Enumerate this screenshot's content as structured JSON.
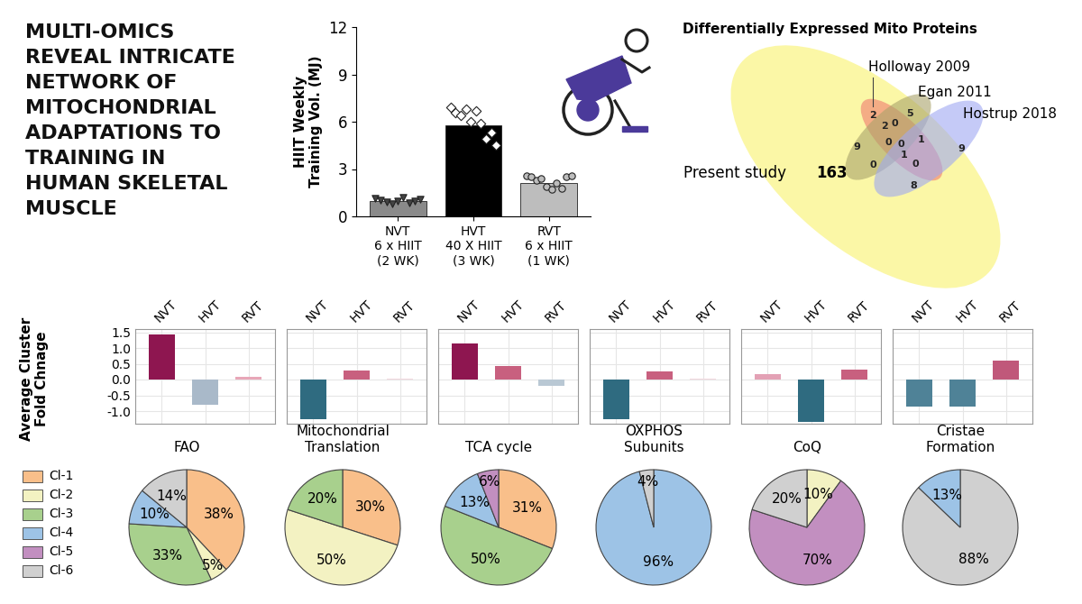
{
  "title": "MULTI-OMICS\nREVEAL INTRICATE\nNETWORK OF\nMITOCHONDRIAL\nADAPTATIONS TO\nTRAINING IN\nHUMAN SKELETAL\nMUSCLE",
  "venn": {
    "title": "Differentially Expressed Mito Proteins",
    "sets": [
      {
        "name": "Present study",
        "color": "#fbf7a6"
      },
      {
        "name": "Holloway 2009",
        "color": "#f07a70"
      },
      {
        "name": "Egan 2011",
        "color": "#a9a26a"
      },
      {
        "name": "Hostrup 2018",
        "color": "#9fa8f2"
      }
    ],
    "present_count": 163,
    "region_counts": [
      2,
      2,
      0,
      5,
      9,
      0,
      0,
      1,
      9,
      1,
      0,
      0,
      8
    ]
  },
  "cluster_legend": [
    {
      "name": "Cl-1",
      "color": "#f9bf8a"
    },
    {
      "name": "Cl-2",
      "color": "#f3f2c2"
    },
    {
      "name": "Cl-3",
      "color": "#a8d08d"
    },
    {
      "name": "Cl-4",
      "color": "#9dc3e6"
    },
    {
      "name": "Cl-5",
      "color": "#c28fc0"
    },
    {
      "name": "Cl-6",
      "color": "#d0d0d0"
    }
  ],
  "chart_data": [
    {
      "type": "bar",
      "ylabel": "HIIT Weekly\nTraining Vol. (MJ)",
      "categories": [
        "NVT\n6 x HIIT\n(2 WK)",
        "HVT\n40 X HIIT\n(3 WK)",
        "RVT\n6 x HIIT\n(1 WK)"
      ],
      "values": [
        0.95,
        5.75,
        2.1
      ],
      "colors": [
        "#8a8a8a",
        "#000000",
        "#bdbdbd"
      ],
      "points": [
        [
          1.15,
          1.05,
          0.9,
          0.8,
          1.0,
          1.2,
          0.85,
          0.95,
          1.1
        ],
        [
          6.9,
          6.6,
          6.4,
          6.8,
          6.0,
          6.7,
          5.9,
          4.9,
          5.3,
          4.5
        ],
        [
          2.6,
          2.5,
          2.3,
          2.4,
          1.9,
          1.7,
          2.1,
          1.8,
          2.5,
          2.6
        ]
      ],
      "ylim": [
        0,
        12
      ],
      "yticks": [
        0,
        3,
        6,
        9,
        12
      ]
    },
    {
      "type": "bar",
      "ylabel": "Average Cluster\nFold Chnage",
      "categories": [
        "NVT",
        "HVT",
        "RVT"
      ],
      "values": [
        1.43,
        -0.81,
        0.08
      ],
      "colors": [
        "#8e1650",
        "#a9b9c9",
        "#e8a7b8"
      ],
      "ylim": [
        -1.4,
        1.6
      ],
      "yticks": [
        {
          "value": -1,
          "label": "-1.0"
        },
        -0.5,
        {
          "value": 0,
          "label": "0.0"
        },
        0.5,
        {
          "value": 1,
          "label": "1.0"
        },
        1.5
      ],
      "grid": true
    },
    {
      "type": "bar",
      "categories": [
        "NVT",
        "HVT",
        "RVT"
      ],
      "values": [
        -1.26,
        0.28,
        0.02
      ],
      "colors": [
        "#2f6b80",
        "#c8607f",
        "#f2d7de"
      ],
      "ylim": [
        -1.4,
        1.6
      ],
      "yticks": [
        {
          "value": -1,
          "label": "-1.0"
        },
        -0.5,
        {
          "value": 0,
          "label": "0.0"
        },
        0.5,
        {
          "value": 1,
          "label": "1.0"
        },
        1.5
      ],
      "grid": true,
      "tick_labels": "x"
    },
    {
      "type": "bar",
      "categories": [
        "NVT",
        "HVT",
        "RVT"
      ],
      "values": [
        1.15,
        0.42,
        -0.2
      ],
      "colors": [
        "#8e1650",
        "#c8607f",
        "#b9c8d4"
      ],
      "ylim": [
        -1.4,
        1.6
      ],
      "yticks": [
        {
          "value": -1,
          "label": "-1.0"
        },
        -0.5,
        {
          "value": 0,
          "label": "0.0"
        },
        0.5,
        {
          "value": 1,
          "label": "1.0"
        },
        1.5
      ],
      "grid": true,
      "tick_labels": "x"
    },
    {
      "type": "bar",
      "categories": [
        "NVT",
        "HVT",
        "RVT"
      ],
      "values": [
        -1.26,
        0.25,
        0.02
      ],
      "colors": [
        "#2f6b80",
        "#c8607f",
        "#f2d7de"
      ],
      "ylim": [
        -1.4,
        1.6
      ],
      "yticks": [
        {
          "value": -1,
          "label": "-1.0"
        },
        -0.5,
        {
          "value": 0,
          "label": "0.0"
        },
        0.5,
        {
          "value": 1,
          "label": "1.0"
        },
        1.5
      ],
      "grid": true,
      "tick_labels": "x"
    },
    {
      "type": "bar",
      "categories": [
        "NVT",
        "HVT",
        "RVT"
      ],
      "values": [
        0.17,
        -1.35,
        0.31
      ],
      "colors": [
        "#e3a1b5",
        "#2f6b80",
        "#c8607f"
      ],
      "ylim": [
        -1.4,
        1.6
      ],
      "yticks": [
        {
          "value": -1,
          "label": "-1.0"
        },
        -0.5,
        {
          "value": 0,
          "label": "0.0"
        },
        0.5,
        {
          "value": 1,
          "label": "1.0"
        },
        1.5
      ],
      "grid": true,
      "tick_labels": "x"
    },
    {
      "type": "bar",
      "categories": [
        "NVT",
        "HVT",
        "RVT"
      ],
      "values": [
        -0.87,
        -0.87,
        0.6
      ],
      "colors": [
        "#4f8297",
        "#4f8297",
        "#c0587a"
      ],
      "ylim": [
        -1.4,
        1.6
      ],
      "yticks": [
        {
          "value": -1,
          "label": "-1.0"
        },
        -0.5,
        {
          "value": 0,
          "label": "0.0"
        },
        0.5,
        {
          "value": 1,
          "label": "1.0"
        },
        1.5
      ],
      "grid": true,
      "tick_labels": "x"
    },
    {
      "type": "pie",
      "title": "FAO",
      "categories": [
        "Cl-1",
        "Cl-2",
        "Cl-3",
        "Cl-4",
        "Cl-6"
      ],
      "values": [
        38,
        5,
        33,
        10,
        14
      ],
      "value_labels": [
        "38%",
        "5%",
        "33%",
        "10%",
        "14%"
      ],
      "data_labels": true
    },
    {
      "type": "pie",
      "title": "Mitochondrial\nTranslation",
      "categories": [
        "Cl-1",
        "Cl-2",
        "Cl-3"
      ],
      "values": [
        30,
        50,
        20
      ],
      "value_labels": [
        "30%",
        "50%",
        "20%"
      ],
      "data_labels": true
    },
    {
      "type": "pie",
      "title": "TCA cycle",
      "categories": [
        "Cl-1",
        "Cl-3",
        "Cl-4",
        "Cl-5"
      ],
      "values": [
        31,
        50,
        13,
        6
      ],
      "value_labels": [
        "31%",
        "50%",
        "13%",
        "6%"
      ],
      "data_labels": true
    },
    {
      "type": "pie",
      "title": "OXPHOS\nSubunits",
      "categories": [
        "Cl-4",
        "Cl-6"
      ],
      "values": [
        96,
        4
      ],
      "value_labels": [
        "96%",
        "4%"
      ],
      "data_labels": true
    },
    {
      "type": "pie",
      "title": "CoQ",
      "categories": [
        "Cl-2",
        "Cl-5",
        "Cl-6"
      ],
      "values": [
        10,
        70,
        20
      ],
      "value_labels": [
        "10%",
        "70%",
        "20%"
      ],
      "data_labels": true
    },
    {
      "type": "pie",
      "title": "Cristae\nFormation",
      "categories": [
        "Cl-6",
        "Cl-4"
      ],
      "values": [
        88,
        13
      ],
      "value_labels": [
        "88%",
        "13%"
      ],
      "data_labels": true
    }
  ]
}
